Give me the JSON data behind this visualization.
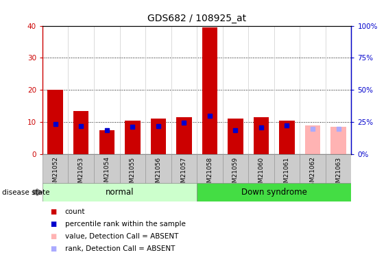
{
  "title": "GDS682 / 108925_at",
  "samples": [
    "GSM21052",
    "GSM21053",
    "GSM21054",
    "GSM21055",
    "GSM21056",
    "GSM21057",
    "GSM21058",
    "GSM21059",
    "GSM21060",
    "GSM21061",
    "GSM21062",
    "GSM21063"
  ],
  "bar_values": [
    20,
    13.5,
    7.5,
    10.5,
    11,
    11.5,
    39.5,
    11,
    11.5,
    10.5,
    9,
    8.5
  ],
  "bar_colors": [
    "#cc0000",
    "#cc0000",
    "#cc0000",
    "#cc0000",
    "#cc0000",
    "#cc0000",
    "#cc0000",
    "#cc0000",
    "#cc0000",
    "#cc0000",
    "#ffb3b3",
    "#ffb3b3"
  ],
  "rank_values": [
    23.5,
    22,
    18.5,
    21.5,
    22,
    24.5,
    30,
    18.5,
    21,
    22.5,
    20,
    20
  ],
  "rank_colors": [
    "#0000cc",
    "#0000cc",
    "#0000cc",
    "#0000cc",
    "#0000cc",
    "#0000cc",
    "#0000cc",
    "#0000cc",
    "#0000cc",
    "#0000cc",
    "#aaaaff",
    "#aaaaff"
  ],
  "ylim_left": [
    0,
    40
  ],
  "ylim_right": [
    0,
    100
  ],
  "yticks_left": [
    0,
    10,
    20,
    30,
    40
  ],
  "yticks_right": [
    0,
    25,
    50,
    75,
    100
  ],
  "ytick_labels_right": [
    "0%",
    "25%",
    "50%",
    "75%",
    "100%"
  ],
  "group_normal_label": "normal",
  "group_down_label": "Down syndrome",
  "disease_state_label": "disease state",
  "legend_items": [
    {
      "label": "count",
      "color": "#cc0000"
    },
    {
      "label": "percentile rank within the sample",
      "color": "#0000cc"
    },
    {
      "label": "value, Detection Call = ABSENT",
      "color": "#ffb3b3"
    },
    {
      "label": "rank, Detection Call = ABSENT",
      "color": "#aaaaff"
    }
  ],
  "background_color": "#ffffff",
  "normal_bg": "#ccffcc",
  "down_bg": "#44dd44",
  "xtick_bg": "#cccccc"
}
